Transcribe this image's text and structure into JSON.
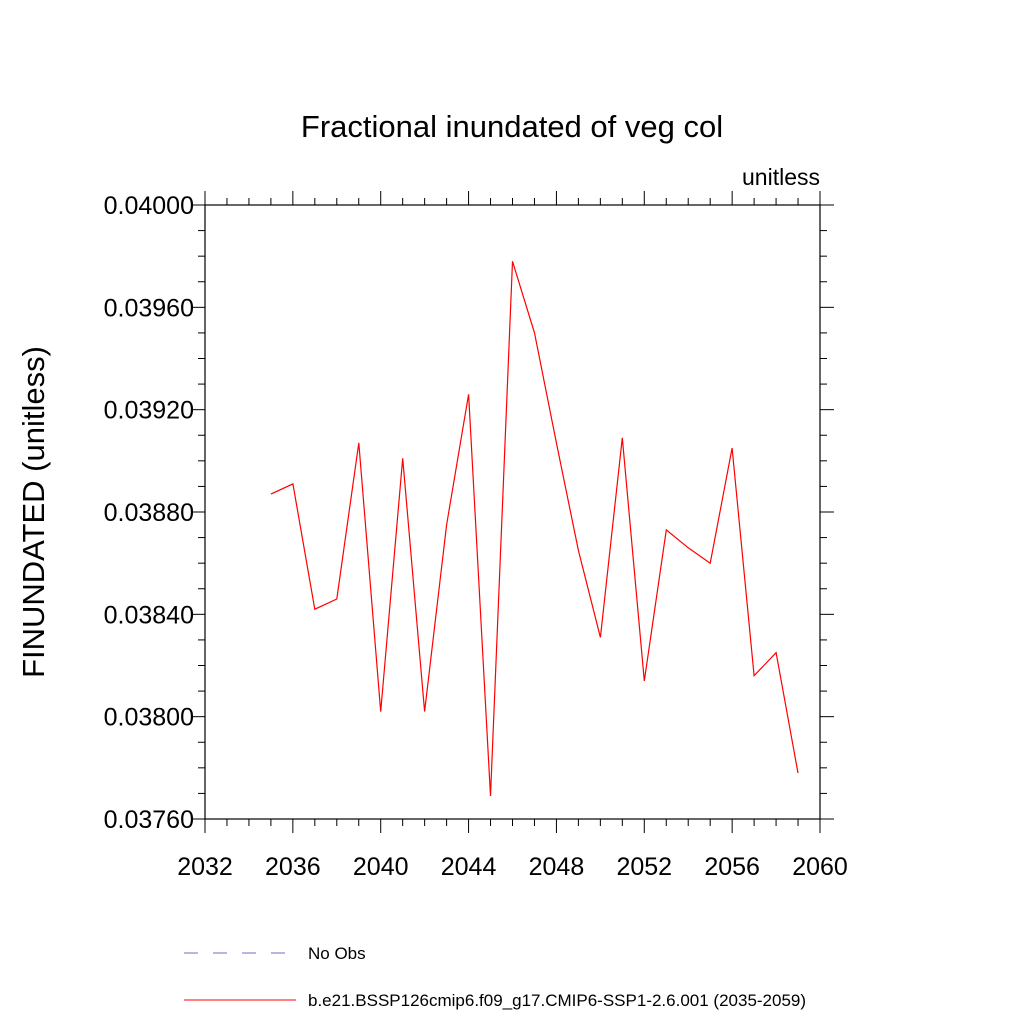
{
  "chart_data": {
    "type": "line",
    "title": "Fractional inundated of veg col",
    "units_label": "unitless",
    "ylabel": "FINUNDATED  (unitless)",
    "xlabel": "",
    "xlim": [
      2032,
      2060
    ],
    "ylim": [
      0.0376,
      0.04
    ],
    "x_ticks": [
      2032,
      2036,
      2040,
      2044,
      2048,
      2052,
      2056,
      2060
    ],
    "x_tick_labels": [
      "2032",
      "2036",
      "2040",
      "2044",
      "2048",
      "2052",
      "2056",
      "2060"
    ],
    "y_ticks": [
      0.0376,
      0.038,
      0.0384,
      0.0388,
      0.0392,
      0.0396,
      0.04
    ],
    "y_tick_labels": [
      "0.03760",
      "0.03800",
      "0.03840",
      "0.03880",
      "0.03920",
      "0.03960",
      "0.04000"
    ],
    "grid": false,
    "legend_position": "bottom",
    "series": [
      {
        "name": "b.e21.BSSP126cmip6.f09_g17.CMIP6-SSP1-2.6.001 (2035-2059)",
        "color": "#ff0000",
        "style": "solid",
        "x": [
          2035,
          2036,
          2037,
          2038,
          2039,
          2040,
          2041,
          2042,
          2043,
          2044,
          2045,
          2046,
          2047,
          2048,
          2049,
          2050,
          2051,
          2052,
          2053,
          2054,
          2055,
          2056,
          2057,
          2058,
          2059
        ],
        "y": [
          0.03887,
          0.03891,
          0.03842,
          0.03846,
          0.03907,
          0.03802,
          0.03901,
          0.03802,
          0.03875,
          0.03926,
          0.03769,
          0.03978,
          0.0395,
          0.03907,
          0.03865,
          0.03831,
          0.03909,
          0.03814,
          0.03873,
          0.03866,
          0.0386,
          0.03905,
          0.03816,
          0.03825,
          0.03778
        ]
      }
    ],
    "legend": [
      {
        "label": "No Obs",
        "color": "#7b68c9",
        "style": "dashed"
      },
      {
        "label": "b.e21.BSSP126cmip6.f09_g17.CMIP6-SSP1-2.6.001 (2035-2059)",
        "color": "#ff0000",
        "style": "solid"
      }
    ]
  }
}
